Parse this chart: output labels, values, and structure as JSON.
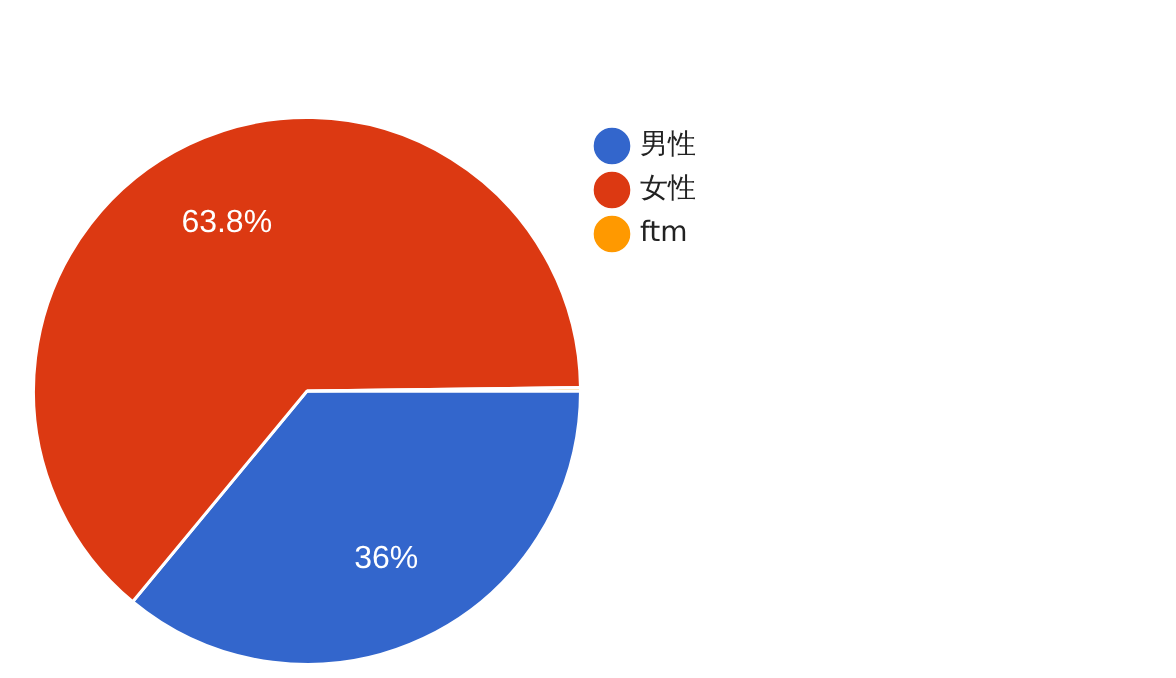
{
  "chart_data": {
    "type": "pie",
    "categories": [
      "男性",
      "女性",
      "ftm"
    ],
    "values": [
      36,
      63.8,
      0.2
    ],
    "colors": [
      "#3366cc",
      "#dc3912",
      "#ff9900"
    ],
    "value_labels": [
      "36%",
      "63.8%",
      null
    ],
    "legend": "top right"
  }
}
